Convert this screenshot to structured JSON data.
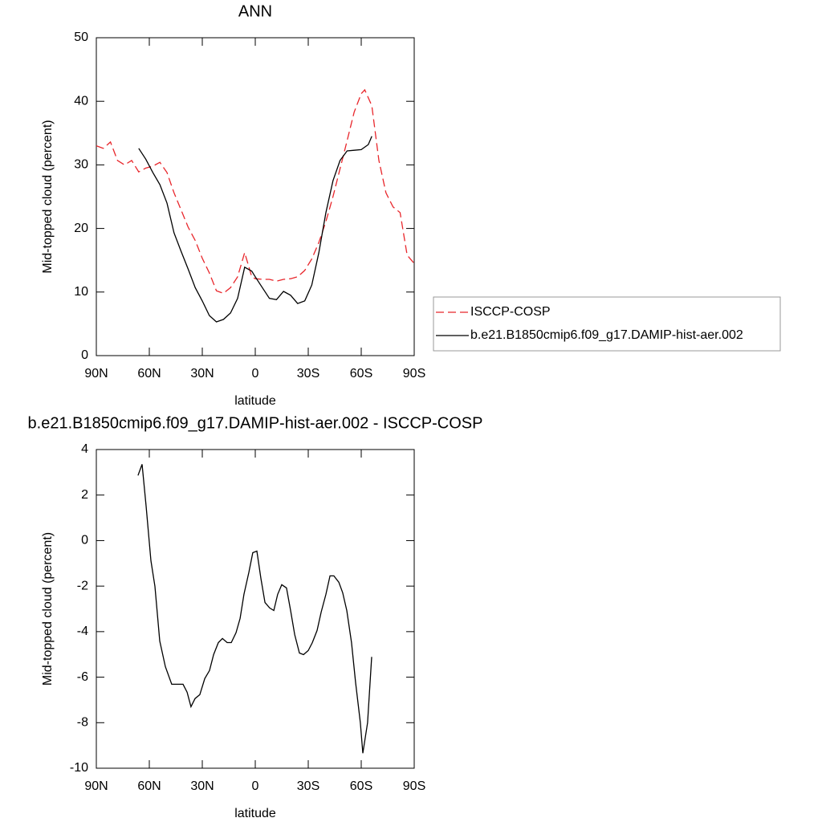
{
  "chart_data": [
    {
      "type": "line",
      "title": "ANN",
      "xlabel": "latitude",
      "ylabel": "Mid-topped cloud (percent)",
      "xlim": [
        90,
        -90
      ],
      "xticks": [
        {
          "value": 90,
          "label": "90N"
        },
        {
          "value": 60,
          "label": "60N"
        },
        {
          "value": 30,
          "label": "30N"
        },
        0,
        {
          "value": -30,
          "label": "30S"
        },
        {
          "value": -60,
          "label": "60S"
        },
        {
          "value": -90,
          "label": "90S"
        }
      ],
      "ylim": [
        0,
        50
      ],
      "yticks": [
        0,
        10,
        20,
        30,
        40,
        50
      ],
      "legend": "right",
      "series": [
        {
          "name": "ISCCP-COSP",
          "color": "#e8262b",
          "dash": true,
          "x": [
            90,
            86,
            82,
            78,
            74,
            70,
            66,
            62,
            58,
            54,
            50,
            46,
            42,
            38,
            34,
            30,
            26,
            22,
            18,
            14,
            10,
            6,
            2,
            0,
            -4,
            -8,
            -12,
            -16,
            -20,
            -24,
            -28,
            -32,
            -36,
            -40,
            -44,
            -48,
            -52,
            -56,
            -60,
            -62,
            -66,
            -70,
            -74,
            -78,
            -82,
            -86,
            -90
          ],
          "values": [
            33.0,
            32.6,
            33.6,
            30.7,
            30.0,
            30.7,
            28.9,
            29.5,
            29.8,
            30.4,
            28.8,
            25.6,
            22.9,
            20.2,
            18.1,
            15.3,
            13.0,
            10.2,
            9.8,
            10.7,
            12.4,
            16.2,
            12.4,
            12.1,
            12.0,
            12.0,
            11.7,
            12.0,
            12.1,
            12.4,
            13.4,
            15.2,
            17.8,
            21.1,
            25.0,
            29.4,
            33.8,
            38.3,
            41.2,
            41.8,
            39.3,
            30.7,
            25.6,
            23.4,
            22.5,
            15.8,
            14.5
          ]
        },
        {
          "name": "b.e21.B1850cmip6.f09_g17.DAMIP-hist-aer.002",
          "color": "#000000",
          "dash": false,
          "x": [
            66,
            62,
            58,
            54,
            50,
            46,
            42,
            38,
            34,
            30,
            26,
            22,
            18,
            14,
            10,
            6,
            2,
            0,
            -4,
            -8,
            -12,
            -16,
            -20,
            -24,
            -28,
            -32,
            -36,
            -40,
            -44,
            -48,
            -52,
            -56,
            -60,
            -64,
            -66
          ],
          "values": [
            32.6,
            30.9,
            28.8,
            26.9,
            24.0,
            19.3,
            16.4,
            13.6,
            10.7,
            8.6,
            6.3,
            5.3,
            5.7,
            6.7,
            9.0,
            13.9,
            13.3,
            12.4,
            10.7,
            9.0,
            8.8,
            10.1,
            9.5,
            8.2,
            8.6,
            11.1,
            16.2,
            22.5,
            27.5,
            30.7,
            32.2,
            32.3,
            32.4,
            33.2,
            34.5
          ]
        }
      ]
    },
    {
      "type": "line",
      "title": "b.e21.B1850cmip6.f09_g17.DAMIP-hist-aer.002 - ISCCP-COSP",
      "xlabel": "latitude",
      "ylabel": "Mid-topped cloud (percent)",
      "xlim": [
        90,
        -90
      ],
      "xticks": [
        {
          "value": 90,
          "label": "90N"
        },
        {
          "value": 60,
          "label": "60N"
        },
        {
          "value": 30,
          "label": "30N"
        },
        0,
        {
          "value": -30,
          "label": "30S"
        },
        {
          "value": -60,
          "label": "60S"
        },
        {
          "value": -90,
          "label": "90S"
        }
      ],
      "ylim": [
        -10,
        4
      ],
      "yticks": [
        -10,
        -8,
        -6,
        -4,
        -2,
        0,
        2,
        4
      ],
      "series": [
        {
          "color": "#000000",
          "dash": false,
          "x": [
            66.4,
            64.1,
            61.8,
            59.1,
            56.8,
            54.1,
            50.9,
            47.3,
            44.1,
            40.9,
            38.6,
            36.4,
            34.1,
            31.4,
            28.6,
            25.9,
            23.6,
            20.9,
            18.6,
            15.9,
            13.6,
            10.9,
            8.6,
            6.4,
            3.6,
            1.4,
            -0.9,
            -3.2,
            -5.5,
            -8.2,
            -10.5,
            -12.7,
            -15.0,
            -17.7,
            -20.0,
            -22.3,
            -25.0,
            -27.3,
            -30.0,
            -32.3,
            -35.0,
            -37.3,
            -40.0,
            -42.3,
            -44.5,
            -47.3,
            -49.5,
            -51.8,
            -54.5,
            -56.8,
            -59.5,
            -60.9,
            -63.6,
            -65.9
          ],
          "values": [
            2.86,
            3.35,
            1.52,
            -0.88,
            -2.01,
            -4.41,
            -5.54,
            -6.31,
            -6.31,
            -6.31,
            -6.66,
            -7.3,
            -6.94,
            -6.77,
            -6.06,
            -5.71,
            -5.01,
            -4.48,
            -4.3,
            -4.48,
            -4.48,
            -4.05,
            -3.42,
            -2.36,
            -1.38,
            -0.53,
            -0.46,
            -1.66,
            -2.72,
            -2.96,
            -3.07,
            -2.36,
            -1.94,
            -2.08,
            -3.07,
            -4.13,
            -4.94,
            -5.01,
            -4.83,
            -4.48,
            -3.95,
            -3.14,
            -2.36,
            -1.55,
            -1.55,
            -1.83,
            -2.29,
            -3.07,
            -4.48,
            -6.24,
            -8.0,
            -9.34,
            -8.0,
            -5.11
          ]
        }
      ]
    }
  ]
}
